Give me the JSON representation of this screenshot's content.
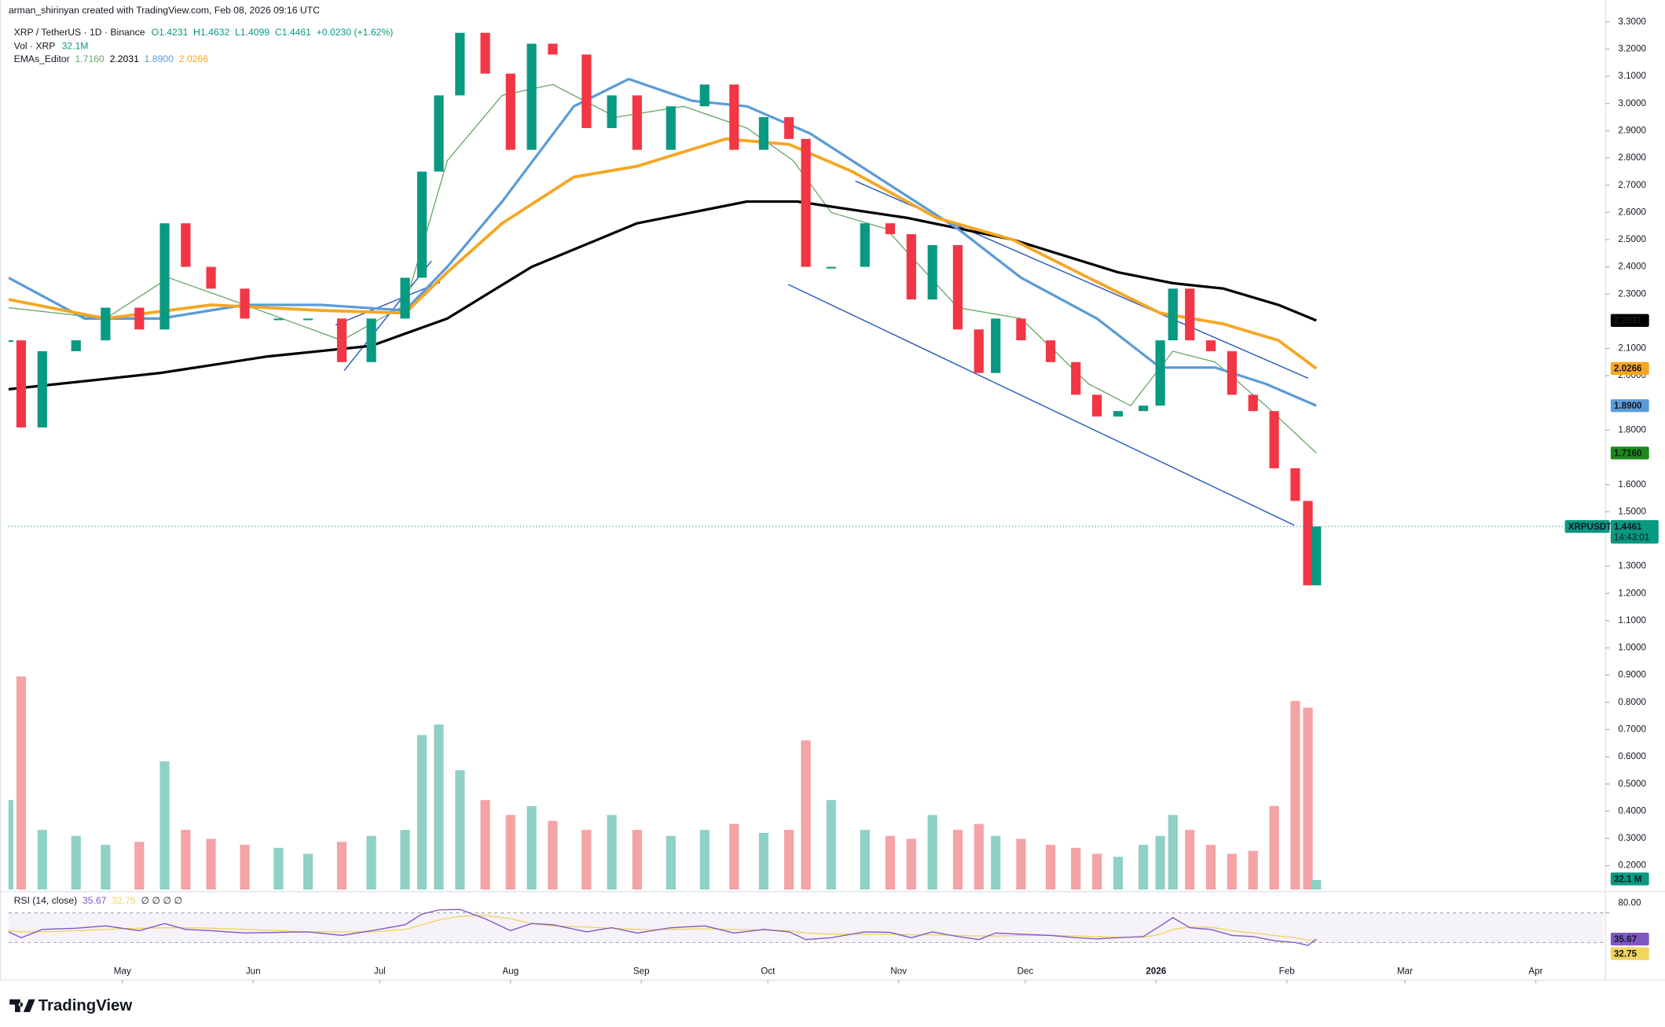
{
  "header": {
    "credit": "arman_shirinyan created with TradingView.com, Feb 08, 2026 09:16 UTC",
    "symbol": "XRP / TetherUS · 1D · Binance",
    "open": "O1.4231",
    "high": "H1.4632",
    "low": "L1.4099",
    "close": "C1.4461",
    "change": "+0.0230 (+1.62%)",
    "volume_title": "Vol · XRP",
    "volume_value": "32.1M",
    "volume_badge": "32.1 M",
    "ema_title": "EMAs_Editor",
    "rsi_title": "RSI (14, close)",
    "rsi_extra": "∅ ∅ ∅ ∅",
    "price_badge_symbol": "XRPUSDT",
    "price_badge_value": "1.4461",
    "countdown": "14:43:01",
    "logo": "TradingView"
  },
  "chart_data": {
    "type": "candlestick",
    "up_color": "#089981",
    "down_color": "#f23645",
    "x": [
      0,
      3,
      8,
      16,
      23,
      31,
      37,
      42,
      48,
      56,
      64,
      71,
      79,
      86,
      94,
      98,
      102,
      107,
      113,
      119,
      124,
      129,
      137,
      143,
      149,
      157,
      165,
      172,
      179,
      185,
      189,
      195,
      203,
      209,
      214,
      219,
      225,
      230,
      234,
      240,
      247,
      253,
      258,
      263,
      269,
      273,
      276,
      280,
      285,
      290,
      295,
      300,
      305,
      308,
      310
    ],
    "values": [
      2.13,
      1.81,
      2.09,
      2.13,
      2.25,
      2.17,
      2.56,
      2.4,
      2.32,
      2.21,
      2.21,
      2.21,
      2.05,
      2.21,
      2.36,
      2.75,
      3.03,
      3.26,
      3.11,
      2.83,
      3.22,
      3.18,
      2.91,
      3.03,
      2.83,
      2.99,
      3.07,
      2.83,
      2.95,
      2.87,
      2.4,
      2.4,
      2.56,
      2.52,
      2.28,
      2.48,
      2.17,
      2.01,
      2.21,
      2.13,
      2.05,
      1.93,
      1.85,
      1.87,
      1.89,
      2.13,
      2.32,
      2.13,
      2.09,
      1.93,
      1.87,
      1.66,
      1.54,
      1.23,
      1.4461
    ],
    "xlim": [
      0,
      378
    ],
    "xticks": [
      {
        "value": 27,
        "label": "May"
      },
      {
        "value": 58,
        "label": "Jun"
      },
      {
        "value": 88,
        "label": "Jul"
      },
      {
        "value": 119,
        "label": "Aug"
      },
      {
        "value": 150,
        "label": "Sep"
      },
      {
        "value": 180,
        "label": "Oct"
      },
      {
        "value": 211,
        "label": "Nov"
      },
      {
        "value": 241,
        "label": "Dec"
      },
      {
        "value": 272,
        "label": "2026"
      },
      {
        "value": 303,
        "label": "Feb"
      },
      {
        "value": 331,
        "label": "Mar"
      },
      {
        "value": 362,
        "label": "Apr"
      }
    ],
    "ylim": [
      0.112,
      3.31
    ],
    "yticks": [
      {
        "value": 3.3,
        "label": "3.3000"
      },
      {
        "value": 3.2,
        "label": "3.2000"
      },
      {
        "value": 3.1,
        "label": "3.1000"
      },
      {
        "value": 3.0,
        "label": "3.0000"
      },
      {
        "value": 2.9,
        "label": "2.9000"
      },
      {
        "value": 2.8,
        "label": "2.8000"
      },
      {
        "value": 2.7,
        "label": "2.7000"
      },
      {
        "value": 2.6,
        "label": "2.6000"
      },
      {
        "value": 2.5,
        "label": "2.5000"
      },
      {
        "value": 2.4,
        "label": "2.4000"
      },
      {
        "value": 2.3,
        "label": "2.3000"
      },
      {
        "value": 2.1,
        "label": "2.1000"
      },
      {
        "value": 2.0,
        "label": "2.0000"
      },
      {
        "value": 1.8,
        "label": "1.8000"
      },
      {
        "value": 1.6,
        "label": "1.6000"
      },
      {
        "value": 1.5,
        "label": "1.5000"
      },
      {
        "value": 1.3,
        "label": "1.3000"
      },
      {
        "value": 1.2,
        "label": "1.2000"
      },
      {
        "value": 1.1,
        "label": "1.1000"
      },
      {
        "value": 1.0,
        "label": "1.0000"
      },
      {
        "value": 0.9,
        "label": "0.9000"
      },
      {
        "value": 0.8,
        "label": "0.8000"
      },
      {
        "value": 0.7,
        "label": "0.7000"
      },
      {
        "value": 0.6,
        "label": "0.6000"
      },
      {
        "value": 0.5,
        "label": "0.5000"
      },
      {
        "value": 0.4,
        "label": "0.4000"
      },
      {
        "value": 0.3,
        "label": "0.3000"
      },
      {
        "value": 0.2,
        "label": "0.2000"
      }
    ],
    "emas": [
      {
        "color": "#6aa86a",
        "width": 1,
        "last_label": "1.7160",
        "badge_color": "#1b8a1b",
        "badge_text": "#ffffff",
        "x": [
          0,
          23,
          38,
          56,
          79,
          94,
          104,
          117,
          129,
          144,
          160,
          175,
          186,
          195,
          208,
          225,
          240,
          256,
          266,
          276,
          286,
          298,
          310
        ],
        "values": [
          2.25,
          2.21,
          2.36,
          2.26,
          2.13,
          2.26,
          2.79,
          3.03,
          3.07,
          2.95,
          2.99,
          2.91,
          2.79,
          2.6,
          2.54,
          2.25,
          2.21,
          1.97,
          1.89,
          2.09,
          2.05,
          1.89,
          1.716
        ]
      },
      {
        "color": "#000000",
        "width": 2.4,
        "last_label": "2.2031",
        "badge_color": "#000000",
        "badge_text": "#ffffff",
        "x": [
          0,
          36,
          61,
          86,
          104,
          124,
          149,
          175,
          187,
          213,
          238,
          263,
          276,
          288,
          301,
          310
        ],
        "values": [
          1.95,
          2.01,
          2.07,
          2.11,
          2.21,
          2.4,
          2.56,
          2.64,
          2.64,
          2.58,
          2.5,
          2.38,
          2.34,
          2.32,
          2.26,
          2.2031
        ]
      },
      {
        "color": "#5b9bd8",
        "width": 2.4,
        "last_label": "1.8900",
        "badge_color": "#5b9bd8",
        "badge_text": "#131722",
        "x": [
          0,
          18,
          36,
          56,
          74,
          94,
          104,
          117,
          134,
          147,
          162,
          175,
          190,
          208,
          225,
          240,
          258,
          273,
          286,
          298,
          310
        ],
        "values": [
          2.36,
          2.21,
          2.21,
          2.26,
          2.26,
          2.24,
          2.4,
          2.64,
          2.99,
          3.09,
          3.01,
          2.99,
          2.89,
          2.71,
          2.54,
          2.36,
          2.21,
          2.03,
          2.03,
          1.97,
          1.89
        ]
      },
      {
        "color": "#f5a623",
        "width": 2.8,
        "last_label": "2.0266",
        "badge_color": "#f5a623",
        "badge_text": "#131722",
        "x": [
          0,
          23,
          48,
          74,
          94,
          104,
          117,
          134,
          149,
          170,
          185,
          200,
          220,
          238,
          256,
          273,
          288,
          301,
          310
        ],
        "values": [
          2.28,
          2.21,
          2.26,
          2.24,
          2.23,
          2.38,
          2.56,
          2.73,
          2.77,
          2.87,
          2.85,
          2.75,
          2.58,
          2.5,
          2.36,
          2.23,
          2.19,
          2.13,
          2.0266
        ]
      }
    ],
    "volume": {
      "y2lim": [
        0,
        2917
      ],
      "up_color": "#8fd1c6",
      "down_color": "#f4a3a6",
      "values": [
        300,
        714,
        200,
        180,
        150,
        160,
        430,
        200,
        170,
        150,
        140,
        120,
        160,
        180,
        200,
        518,
        553,
        400,
        300,
        250,
        280,
        230,
        200,
        250,
        200,
        180,
        200,
        220,
        190,
        200,
        500,
        300,
        200,
        180,
        170,
        250,
        200,
        220,
        180,
        170,
        150,
        140,
        120,
        110,
        150,
        180,
        250,
        200,
        150,
        120,
        130,
        280,
        632,
        610,
        32.1
      ]
    },
    "rsi": {
      "ylim": [
        -30,
        105
      ],
      "yticks": [
        {
          "value": 80,
          "label": "80.00"
        }
      ],
      "bands": [
        80,
        30
      ],
      "color": "#7e57c2",
      "ma_color": "#f2d45c",
      "last_label": "35.67",
      "ma_last_label": "32.75",
      "values": [
        48,
        38,
        52,
        54,
        58,
        50,
        62,
        52,
        50,
        46,
        47,
        48,
        42,
        50,
        60,
        78,
        85,
        86,
        70,
        50,
        62,
        60,
        48,
        55,
        46,
        55,
        58,
        46,
        52,
        48,
        35,
        38,
        48,
        47,
        38,
        48,
        40,
        35,
        46,
        44,
        42,
        38,
        36,
        38,
        40,
        58,
        72,
        55,
        52,
        42,
        40,
        33,
        30,
        25,
        35.67
      ],
      "ma_values": [
        50,
        48,
        48,
        50,
        52,
        54,
        55,
        55,
        54,
        52,
        50,
        48,
        48,
        48,
        52,
        60,
        68,
        74,
        76,
        70,
        62,
        58,
        56,
        54,
        52,
        52,
        53,
        52,
        51,
        50,
        46,
        44,
        44,
        44,
        43,
        43,
        42,
        41,
        41,
        42,
        42,
        41,
        40,
        39,
        39,
        44,
        52,
        56,
        56,
        50,
        46,
        42,
        38,
        34,
        32.75
      ]
    }
  }
}
